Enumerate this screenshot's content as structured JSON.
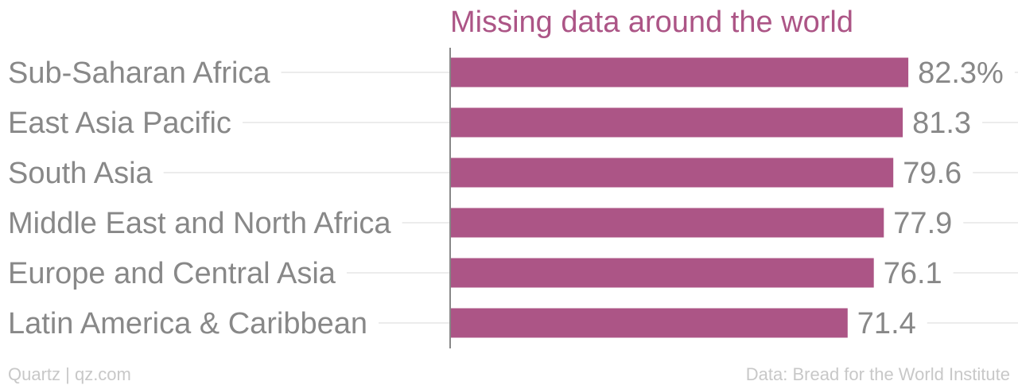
{
  "chart_data": {
    "type": "bar",
    "orientation": "horizontal",
    "title": "Missing data around the world",
    "categories": [
      "Sub-Saharan Africa",
      "East Asia Pacific",
      "South Asia",
      "Middle East and North Africa",
      "Europe and Central Asia",
      "Latin America & Caribbean"
    ],
    "values": [
      82.3,
      81.3,
      79.6,
      77.9,
      76.1,
      71.4
    ],
    "value_labels": [
      "82.3%",
      "81.3",
      "79.6",
      "77.9",
      "76.1",
      "71.4"
    ],
    "xlim": [
      0,
      100
    ],
    "bar_color": "#ac5586",
    "grid": true,
    "legend": "none"
  },
  "footer": {
    "source_left": "Quartz | qz.com",
    "source_right": "Data: Bread for the World Institute"
  }
}
